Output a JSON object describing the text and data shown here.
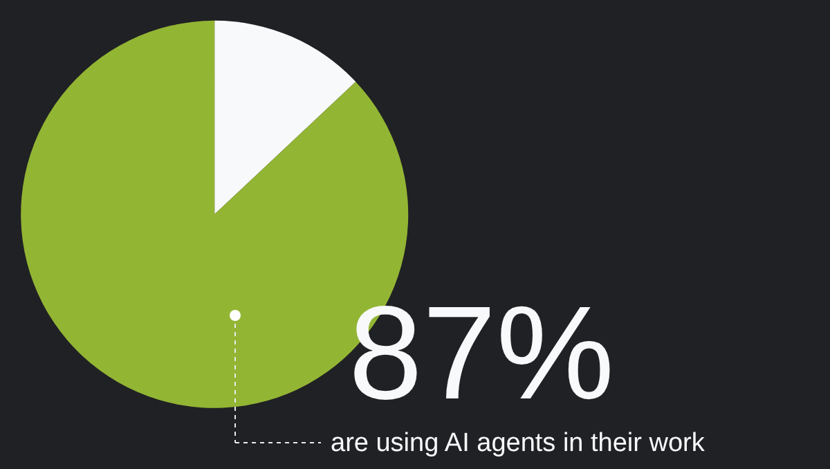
{
  "chart_data": {
    "type": "pie",
    "categories": [
      null,
      null
    ],
    "values": [
      13,
      87
    ],
    "colors": [
      "#f8f9fa",
      "#93b534"
    ],
    "value_labels": [
      null,
      "87%"
    ],
    "annotations": [
      "are using AI agents in their work"
    ],
    "legend": false
  }
}
